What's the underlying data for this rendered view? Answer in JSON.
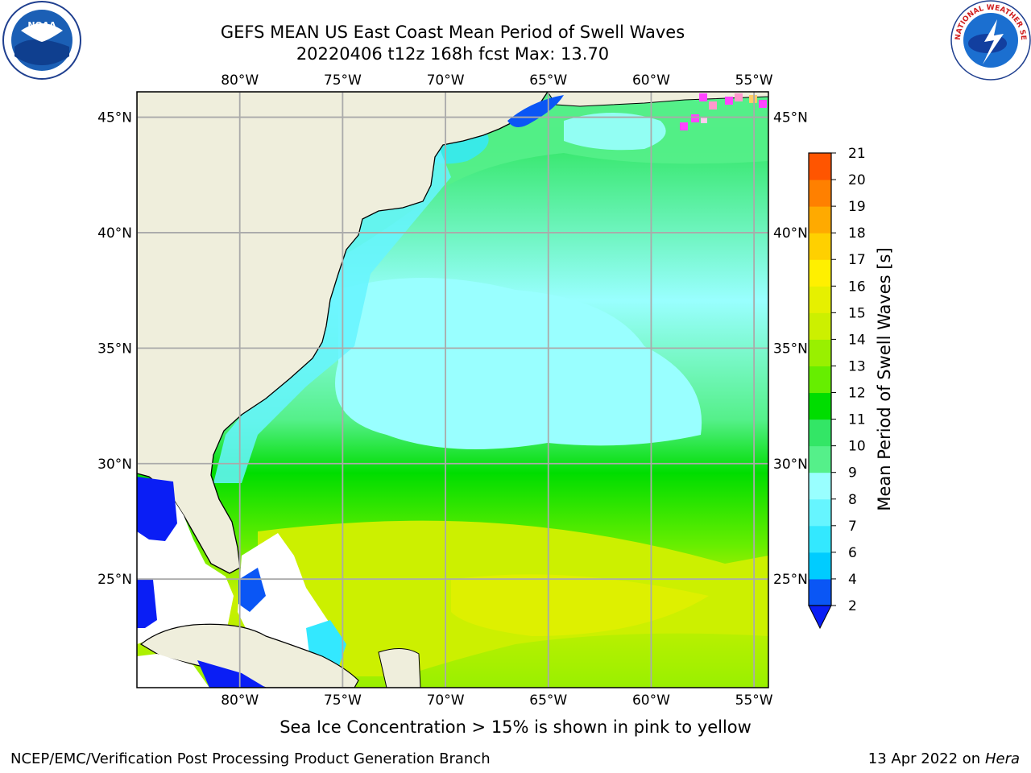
{
  "title": {
    "line1": "GEFS MEAN US East Coast Mean Period of Swell Waves",
    "line2": "20220406 t12z 168h fcst   Max: 13.70"
  },
  "logos": {
    "noaa": "NOAA",
    "nws_ring": "NATIONAL WEATHER SERVICE"
  },
  "map": {
    "lon_labels": [
      "80°W",
      "75°W",
      "70°W",
      "65°W",
      "60°W",
      "55°W"
    ],
    "lat_labels": [
      "45°N",
      "40°N",
      "35°N",
      "30°N",
      "25°N"
    ],
    "lon_range": [
      -85,
      -54.3
    ],
    "lat_range": [
      20.3,
      46.1
    ]
  },
  "colorbar": {
    "label": "Mean Period of Swell Waves [s]",
    "ticks": [
      "2",
      "4",
      "6",
      "7",
      "8",
      "9",
      "10",
      "11",
      "12",
      "13",
      "14",
      "15",
      "16",
      "17",
      "18",
      "19",
      "20",
      "21"
    ],
    "colors": [
      "#0a56f5",
      "#00ccff",
      "#33e8ff",
      "#66f5ff",
      "#99ffff",
      "#55f08a",
      "#33e666",
      "#00dd00",
      "#66ee00",
      "#99f000",
      "#ccf000",
      "#e6f000",
      "#fff000",
      "#ffd000",
      "#ffaa00",
      "#ff8000",
      "#ff5500",
      "#ff2200"
    ],
    "under_color": "#0a1ef5"
  },
  "note": "Sea Ice Concentration > 15% is shown in pink to yellow",
  "footer": {
    "left": "NCEP/EMC/Verification Post Processing Product Generation Branch",
    "right_prefix": "13 Apr 2022 on ",
    "right_machine": "Hera"
  },
  "colors": {
    "land": "#efeedc",
    "grid": "#aaaaaa",
    "missing": "#ffffff"
  }
}
